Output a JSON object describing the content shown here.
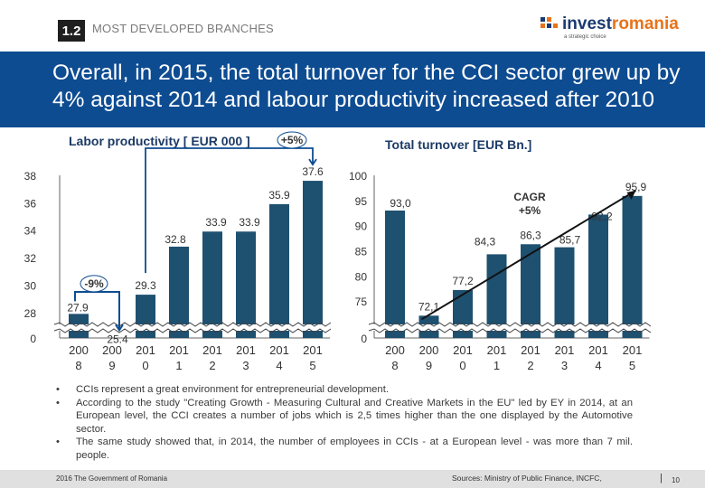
{
  "section": {
    "number": "1.2",
    "title": "MOST DEVELOPED BRANCHES"
  },
  "logo": {
    "prefix": "invest",
    "accent": "romania",
    "tagline": "a strategic choice",
    "colors": {
      "blue": "#1a3a72",
      "orange": "#e8731a"
    }
  },
  "headline": "Overall, in 2015, the total turnover for the CCI sector grew up by 4% against 2014 and labour productivity increased after 2010",
  "colors": {
    "banner": "#0e4c92",
    "bar": "#1e5070",
    "annotation": "#0e4c92"
  },
  "chart_data": [
    {
      "type": "bar",
      "title": "Labor productivity [ EUR 000 ]",
      "categories": [
        "2008",
        "2009",
        "2010",
        "2011",
        "2012",
        "2013",
        "2014",
        "2015"
      ],
      "category_labels": [
        [
          "200",
          "8"
        ],
        [
          "200",
          "9"
        ],
        [
          "201",
          "0"
        ],
        [
          "201",
          "1"
        ],
        [
          "201",
          "2"
        ],
        [
          "201",
          "3"
        ],
        [
          "201",
          "4"
        ],
        [
          "201",
          "5"
        ]
      ],
      "values": [
        27.9,
        25.4,
        29.3,
        32.8,
        33.9,
        33.9,
        35.9,
        37.6
      ],
      "value_labels": [
        "27.9",
        "25.4",
        "29.3",
        "32.8",
        "33.9",
        "33.9",
        "35.9",
        "37.6"
      ],
      "y_ticks": [
        "38",
        "36",
        "34",
        "32",
        "30",
        "28",
        "0"
      ],
      "y_tick_values": [
        38,
        36,
        34,
        32,
        30,
        28
      ],
      "ylim": [
        25,
        38
      ],
      "axis_break": true,
      "annotations": [
        {
          "label": "-9%",
          "from": "2008",
          "to": "2009"
        },
        {
          "label": "+5%",
          "from": "2010",
          "to": "2015"
        }
      ]
    },
    {
      "type": "line",
      "title": "Total turnover [EUR Bn.]",
      "categories": [
        "2008",
        "2009",
        "2010",
        "2011",
        "2012",
        "2013",
        "2014",
        "2015"
      ],
      "category_labels": [
        [
          "200",
          "8"
        ],
        [
          "200",
          "9"
        ],
        [
          "201",
          "0"
        ],
        [
          "201",
          "1"
        ],
        [
          "201",
          "2"
        ],
        [
          "201",
          "3"
        ],
        [
          "201",
          "4"
        ],
        [
          "201",
          "5"
        ]
      ],
      "values": [
        93.0,
        72.1,
        77.2,
        84.3,
        86.3,
        85.7,
        92.2,
        95.9
      ],
      "value_labels": [
        "93,0",
        "72,1",
        "77,2",
        "84,3",
        "86,3",
        "85,7",
        "92,2",
        "95,9"
      ],
      "y_ticks": [
        "100",
        "95",
        "90",
        "85",
        "80",
        "75",
        "0"
      ],
      "y_tick_values": [
        100,
        95,
        90,
        85,
        80,
        75
      ],
      "ylim": [
        70,
        100
      ],
      "axis_break": true,
      "annotations": [
        {
          "label": "CAGR",
          "sublabel": "+5%",
          "from": "2009",
          "to": "2015"
        }
      ]
    }
  ],
  "bullets": [
    "CCIs represent a great environment for entrepreneurial development.",
    "According to the study \"Creating Growth - Measuring Cultural and Creative Markets in the EU\" led by EY in 2014, at an European level, the CCI creates a number of jobs which is 2,5 times higher than the one displayed by the Automotive sector.",
    "The same study showed that, in 2014, the number of employees in CCIs - at a European level - was more than 7 mil. people."
  ],
  "footer": {
    "left": "2016 The Government of Romania",
    "right": "Sources: Ministry of Public Finance, INCFC,",
    "separator": "|",
    "page": "10"
  }
}
